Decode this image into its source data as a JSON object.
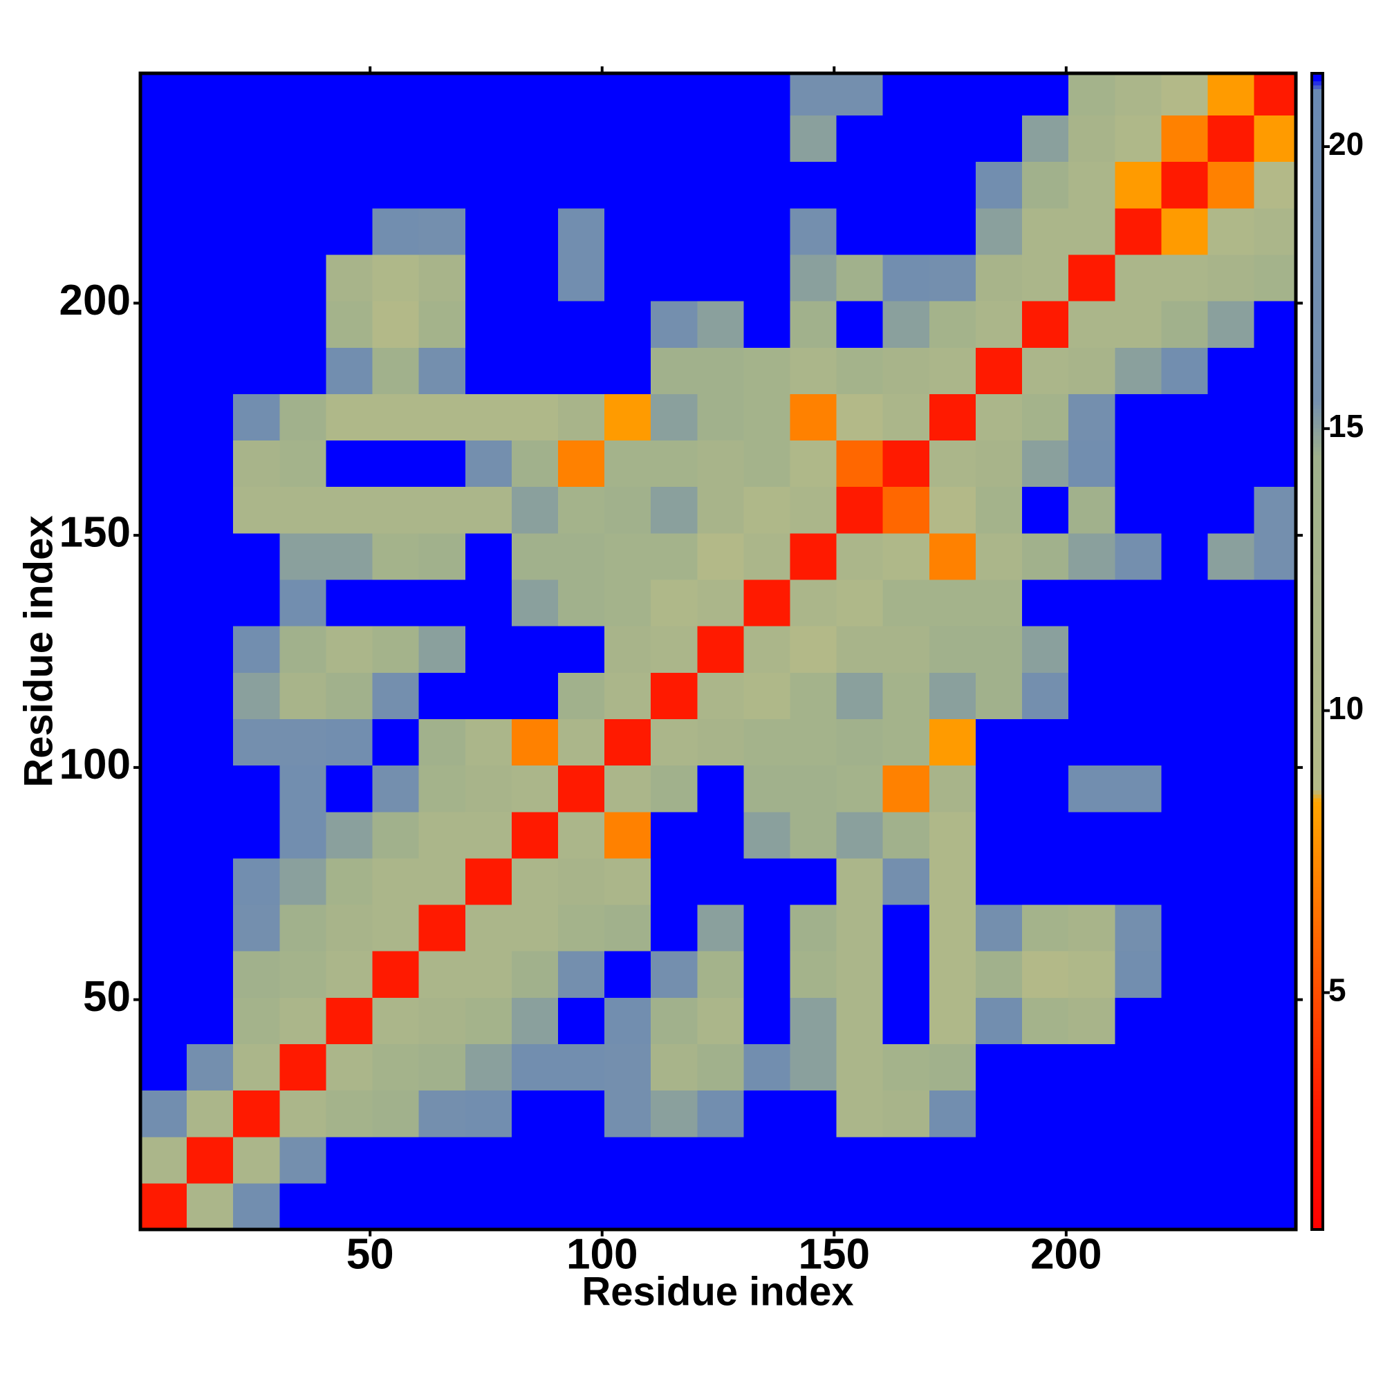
{
  "chart_data": {
    "type": "heatmap",
    "xlabel": "Residue index",
    "ylabel": "Residue index",
    "xlim": [
      0.5,
      249.5
    ],
    "ylim": [
      0.5,
      249.5
    ],
    "xticks": [
      50,
      100,
      150,
      200
    ],
    "yticks": [
      50,
      100,
      150,
      200
    ],
    "x_edges": [
      0.5,
      10.5,
      20.5,
      30.5,
      40.5,
      50.5,
      60.5,
      70.5,
      80.5,
      90.5,
      100.5,
      110.5,
      120.5,
      130.5,
      140.5,
      150.5,
      160.5,
      170.5,
      180.5,
      190.5,
      200.5,
      210.5,
      220.5,
      230.5,
      240.5,
      249.5
    ],
    "y_edges": [
      0.5,
      10.5,
      20.5,
      30.5,
      40.5,
      50.5,
      60.5,
      70.5,
      80.5,
      90.5,
      100.5,
      110.5,
      120.5,
      130.5,
      140.5,
      150.5,
      160.5,
      170.5,
      180.5,
      190.5,
      200.5,
      210.5,
      220.5,
      230.5,
      240.5,
      249.5
    ],
    "z": [
      [
        3,
        11,
        17,
        22,
        22,
        22,
        22,
        22,
        22,
        22,
        22,
        22,
        22,
        22,
        22,
        22,
        22,
        22,
        22,
        22,
        22,
        22,
        22,
        22,
        22
      ],
      [
        11,
        3,
        11,
        16,
        22,
        22,
        22,
        22,
        22,
        22,
        22,
        22,
        22,
        22,
        22,
        22,
        22,
        22,
        22,
        22,
        22,
        22,
        22,
        22,
        22
      ],
      [
        17,
        11,
        3,
        11,
        13,
        14,
        16,
        17,
        22,
        22,
        16,
        15,
        17,
        22,
        22,
        11,
        12,
        17,
        22,
        22,
        22,
        22,
        22,
        22,
        22
      ],
      [
        22,
        16,
        11,
        3,
        11,
        13,
        14,
        15,
        17,
        17,
        16,
        12,
        14,
        17,
        15,
        11,
        13,
        14,
        22,
        22,
        22,
        22,
        22,
        22,
        22
      ],
      [
        22,
        22,
        13,
        11,
        3,
        11,
        12,
        13,
        15,
        22,
        17,
        14,
        11,
        22,
        15,
        11,
        22,
        10,
        17,
        13,
        12,
        22,
        22,
        22,
        22
      ],
      [
        22,
        22,
        14,
        13,
        11,
        3,
        11,
        11,
        14,
        16,
        22,
        16,
        13,
        22,
        13,
        11,
        22,
        10,
        14,
        9,
        10,
        17,
        22,
        22,
        22
      ],
      [
        22,
        22,
        16,
        14,
        12,
        11,
        3,
        11,
        11,
        13,
        14,
        22,
        15,
        22,
        14,
        11,
        22,
        10,
        16,
        13,
        12,
        16,
        22,
        22,
        22
      ],
      [
        22,
        22,
        17,
        15,
        13,
        11,
        11,
        3,
        11,
        12,
        11,
        22,
        22,
        22,
        22,
        11,
        16,
        10,
        22,
        22,
        22,
        22,
        22,
        22,
        22
      ],
      [
        22,
        22,
        22,
        17,
        15,
        14,
        11,
        11,
        3,
        11,
        7,
        22,
        22,
        15,
        14,
        15,
        14,
        10,
        22,
        22,
        22,
        22,
        22,
        22,
        22
      ],
      [
        22,
        22,
        22,
        17,
        22,
        16,
        13,
        12,
        11,
        3,
        11,
        14,
        22,
        14,
        14,
        13,
        7,
        12,
        22,
        22,
        17,
        17,
        22,
        22,
        22
      ],
      [
        22,
        22,
        16,
        16,
        17,
        22,
        14,
        11,
        7,
        11,
        3,
        11,
        12,
        13,
        13,
        14,
        13,
        8,
        22,
        22,
        22,
        22,
        22,
        22,
        22
      ],
      [
        22,
        22,
        15,
        12,
        14,
        16,
        22,
        22,
        22,
        14,
        11,
        3,
        11,
        10,
        13,
        15,
        13,
        15,
        14,
        16,
        22,
        22,
        22,
        22,
        22
      ],
      [
        22,
        22,
        17,
        14,
        11,
        13,
        15,
        22,
        22,
        22,
        12,
        11,
        3,
        11,
        9,
        12,
        12,
        14,
        14,
        15,
        22,
        22,
        22,
        22,
        22
      ],
      [
        22,
        22,
        22,
        17,
        22,
        22,
        22,
        22,
        15,
        14,
        13,
        10,
        11,
        3,
        11,
        10,
        13,
        13,
        13,
        22,
        22,
        22,
        22,
        22,
        22
      ],
      [
        22,
        22,
        22,
        15,
        15,
        13,
        14,
        22,
        14,
        14,
        13,
        13,
        9,
        11,
        3,
        11,
        10,
        7,
        11,
        14,
        15,
        16,
        22,
        15,
        16
      ],
      [
        22,
        22,
        11,
        11,
        11,
        11,
        11,
        11,
        15,
        13,
        14,
        15,
        12,
        10,
        11,
        3,
        6,
        9,
        13,
        22,
        14,
        22,
        22,
        22,
        16
      ],
      [
        22,
        22,
        12,
        13,
        22,
        22,
        22,
        16,
        14,
        7,
        13,
        13,
        12,
        13,
        10,
        6,
        3,
        11,
        12,
        15,
        17,
        22,
        22,
        22,
        22
      ],
      [
        22,
        22,
        17,
        14,
        10,
        10,
        10,
        10,
        10,
        12,
        8,
        15,
        14,
        13,
        7,
        9,
        11,
        3,
        11,
        13,
        16,
        22,
        22,
        22,
        22
      ],
      [
        22,
        22,
        22,
        22,
        17,
        14,
        16,
        22,
        22,
        22,
        22,
        14,
        14,
        13,
        11,
        13,
        12,
        11,
        3,
        11,
        12,
        15,
        17,
        22,
        22
      ],
      [
        22,
        22,
        22,
        22,
        13,
        9,
        13,
        22,
        22,
        22,
        22,
        16,
        15,
        22,
        14,
        22,
        15,
        13,
        11,
        3,
        11,
        11,
        14,
        15,
        22
      ],
      [
        22,
        22,
        22,
        22,
        12,
        10,
        12,
        22,
        22,
        17,
        22,
        22,
        22,
        22,
        15,
        14,
        17,
        16,
        12,
        11,
        3,
        11,
        11,
        12,
        13
      ],
      [
        22,
        22,
        22,
        22,
        22,
        17,
        16,
        22,
        22,
        17,
        22,
        22,
        22,
        22,
        16,
        22,
        22,
        22,
        15,
        11,
        11,
        3,
        8,
        10,
        11
      ],
      [
        22,
        22,
        22,
        22,
        22,
        22,
        22,
        22,
        22,
        22,
        22,
        22,
        22,
        22,
        22,
        22,
        22,
        22,
        17,
        14,
        11,
        8,
        3,
        7,
        9
      ],
      [
        22,
        22,
        22,
        22,
        22,
        22,
        22,
        22,
        22,
        22,
        22,
        22,
        22,
        22,
        15,
        22,
        22,
        22,
        22,
        15,
        12,
        10,
        7,
        3,
        8
      ],
      [
        22,
        22,
        22,
        22,
        22,
        22,
        22,
        22,
        22,
        22,
        22,
        22,
        22,
        22,
        16,
        16,
        22,
        22,
        22,
        22,
        13,
        11,
        9,
        8,
        3
      ]
    ],
    "colorbar": {
      "lim": [
        0.8,
        21.3
      ],
      "ticks": [
        5,
        10,
        15,
        20
      ],
      "stops": [
        {
          "value": 0.8,
          "color": "#ff0000"
        },
        {
          "value": 3,
          "color": "#ff1a00"
        },
        {
          "value": 8.4,
          "color": "#ffa500"
        },
        {
          "value": 8.6,
          "color": "#b4ba88"
        },
        {
          "value": 14.5,
          "color": "#9fb08c"
        },
        {
          "value": 15.5,
          "color": "#7590ae"
        },
        {
          "value": 21.0,
          "color": "#6a8ab2"
        },
        {
          "value": 21.2,
          "color": "#0000ff"
        }
      ]
    }
  }
}
